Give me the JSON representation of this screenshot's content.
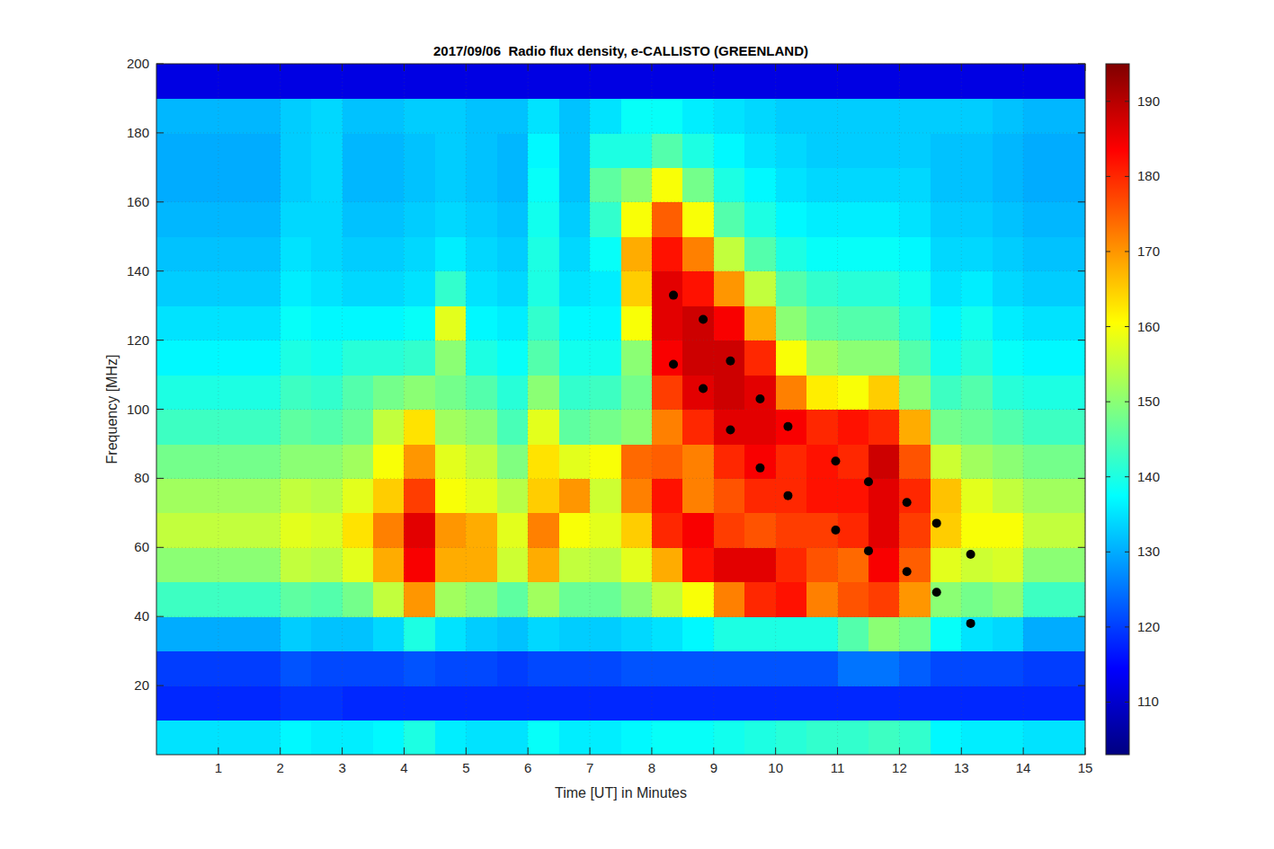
{
  "chart_data": {
    "type": "heatmap",
    "title": "2017/09/06  Radio flux density, e-CALLISTO (GREENLAND)",
    "x_label": "Time [UT] in Minutes",
    "y_label": "Frequency [MHz]",
    "xlim": [
      0,
      15
    ],
    "ylim": [
      0,
      200
    ],
    "xticks": [
      1,
      2,
      3,
      4,
      5,
      6,
      7,
      8,
      9,
      10,
      11,
      12,
      13,
      14,
      15
    ],
    "yticks": [
      20,
      40,
      60,
      80,
      100,
      120,
      140,
      160,
      180,
      200
    ],
    "grid": true,
    "cells": {
      "x": [
        0,
        0.5,
        1,
        1.5,
        2,
        2.5,
        3,
        3.5,
        4,
        4.5,
        5,
        5.5,
        6,
        6.5,
        7,
        7.5,
        8,
        8.5,
        9,
        9.5,
        10,
        10.5,
        11,
        11.5,
        12,
        12.5,
        13,
        13.5,
        14,
        14.5,
        15
      ],
      "y": [
        0,
        10,
        20,
        30,
        40,
        50,
        60,
        70,
        80,
        90,
        100,
        110,
        120,
        130,
        140,
        150,
        160,
        170,
        180,
        190,
        200
      ],
      "values": [
        [
          135,
          118,
          120,
          130,
          143,
          150,
          155,
          152,
          148,
          143,
          140,
          137,
          135,
          133,
          132,
          131,
          130,
          130,
          131,
          112
        ],
        [
          135,
          118,
          120,
          130,
          143,
          150,
          155,
          152,
          148,
          143,
          140,
          137,
          135,
          133,
          132,
          131,
          130,
          130,
          131,
          112
        ],
        [
          135,
          118,
          120,
          130,
          143,
          150,
          155,
          152,
          148,
          143,
          140,
          137,
          135,
          133,
          132,
          131,
          130,
          130,
          131,
          112
        ],
        [
          135,
          118,
          120,
          130,
          143,
          150,
          155,
          152,
          148,
          143,
          140,
          137,
          135,
          133,
          132,
          131,
          130,
          130,
          131,
          112
        ],
        [
          137,
          119,
          122,
          133,
          146,
          155,
          158,
          155,
          150,
          146,
          143,
          140,
          138,
          136,
          135,
          134,
          133,
          133,
          133,
          112
        ],
        [
          136,
          119,
          121,
          132,
          145,
          154,
          157,
          154,
          150,
          145,
          142,
          139,
          137,
          135,
          134,
          134,
          134,
          134,
          134,
          112
        ],
        [
          136,
          118,
          121,
          132,
          148,
          158,
          163,
          158,
          152,
          147,
          145,
          141,
          137,
          134,
          133,
          132,
          131,
          131,
          132,
          112
        ],
        [
          137,
          118,
          121,
          134,
          155,
          168,
          172,
          165,
          160,
          155,
          148,
          141,
          137,
          134,
          133,
          132,
          131,
          131,
          132,
          112
        ],
        [
          140,
          118,
          122,
          140,
          170,
          184,
          186,
          178,
          170,
          163,
          150,
          142,
          138,
          135,
          134,
          133,
          132,
          132,
          133,
          112
        ],
        [
          136,
          118,
          121,
          135,
          152,
          168,
          170,
          160,
          158,
          152,
          148,
          150,
          158,
          142,
          136,
          134,
          133,
          133,
          133,
          112
        ],
        [
          135,
          118,
          121,
          133,
          150,
          168,
          168,
          158,
          155,
          150,
          145,
          140,
          137,
          135,
          134,
          133,
          132,
          132,
          132,
          112
        ],
        [
          135,
          118,
          120,
          132,
          146,
          156,
          158,
          154,
          149,
          144,
          141,
          138,
          136,
          134,
          133,
          132,
          131,
          131,
          132,
          112
        ],
        [
          138,
          118,
          121,
          134,
          152,
          168,
          172,
          165,
          163,
          158,
          150,
          145,
          142,
          140,
          140,
          139,
          138,
          137,
          135,
          112
        ],
        [
          136,
          118,
          121,
          133,
          147,
          155,
          160,
          170,
          158,
          146,
          142,
          139,
          137,
          135,
          134,
          133,
          132,
          132,
          132,
          112
        ],
        [
          136,
          118,
          121,
          133,
          147,
          154,
          158,
          156,
          160,
          148,
          143,
          139,
          137,
          136,
          138,
          142,
          146,
          140,
          135,
          112
        ],
        [
          137,
          118,
          122,
          134,
          150,
          158,
          165,
          172,
          174,
          150,
          148,
          150,
          160,
          165,
          168,
          160,
          150,
          140,
          138,
          112
        ],
        [
          138,
          118,
          122,
          135,
          155,
          168,
          180,
          182,
          175,
          172,
          178,
          184,
          186,
          186,
          182,
          175,
          160,
          145,
          138,
          112
        ],
        [
          138,
          118,
          122,
          137,
          160,
          182,
          184,
          172,
          172,
          180,
          186,
          188,
          188,
          182,
          172,
          160,
          148,
          140,
          136,
          112
        ],
        [
          139,
          118,
          122,
          140,
          172,
          186,
          178,
          176,
          180,
          186,
          188,
          188,
          184,
          170,
          155,
          145,
          140,
          137,
          135,
          112
        ],
        [
          140,
          118,
          122,
          140,
          180,
          186,
          176,
          180,
          184,
          186,
          186,
          180,
          168,
          155,
          145,
          140,
          137,
          135,
          134,
          112
        ],
        [
          141,
          118,
          122,
          140,
          182,
          180,
          178,
          180,
          180,
          184,
          172,
          160,
          150,
          145,
          140,
          137,
          135,
          134,
          133,
          112
        ],
        [
          142,
          118,
          122,
          140,
          172,
          176,
          178,
          182,
          182,
          180,
          162,
          152,
          146,
          142,
          138,
          136,
          134,
          133,
          133,
          112
        ],
        [
          142,
          118,
          125,
          145,
          176,
          174,
          180,
          182,
          180,
          182,
          160,
          150,
          145,
          141,
          138,
          136,
          134,
          133,
          133,
          112
        ],
        [
          143,
          118,
          125,
          150,
          178,
          184,
          186,
          186,
          188,
          180,
          165,
          150,
          145,
          141,
          138,
          136,
          134,
          133,
          133,
          112
        ],
        [
          142,
          118,
          123,
          148,
          170,
          175,
          178,
          180,
          176,
          168,
          150,
          145,
          141,
          139,
          137,
          135,
          134,
          133,
          133,
          112
        ],
        [
          137,
          118,
          121,
          138,
          150,
          158,
          165,
          166,
          156,
          148,
          143,
          139,
          137,
          135,
          134,
          133,
          132,
          132,
          133,
          112
        ],
        [
          136,
          118,
          121,
          135,
          148,
          156,
          160,
          158,
          152,
          147,
          145,
          141,
          139,
          136,
          134,
          133,
          132,
          132,
          133,
          112
        ],
        [
          136,
          118,
          121,
          134,
          150,
          157,
          160,
          155,
          150,
          145,
          141,
          138,
          136,
          134,
          133,
          132,
          131,
          131,
          132,
          112
        ],
        [
          135,
          118,
          120,
          130,
          143,
          150,
          155,
          152,
          148,
          143,
          140,
          137,
          135,
          133,
          132,
          131,
          130,
          130,
          131,
          112
        ],
        [
          135,
          118,
          120,
          130,
          143,
          150,
          155,
          152,
          148,
          143,
          140,
          137,
          135,
          133,
          132,
          131,
          130,
          130,
          131,
          112
        ]
      ]
    },
    "colorbar": {
      "lim": [
        103,
        195
      ],
      "ticks": [
        110,
        120,
        130,
        140,
        150,
        160,
        170,
        180,
        190
      ]
    },
    "series": [
      {
        "type": "scatter",
        "color": "#000000",
        "marker": "circle",
        "x": [
          8.35,
          8.35,
          8.83,
          8.83,
          9.27,
          9.27,
          9.75,
          9.75,
          10.2,
          10.2,
          10.97,
          10.97,
          11.5,
          11.5,
          12.12,
          12.12,
          12.6,
          12.6,
          13.15,
          13.15
        ],
        "values": [
          133,
          113,
          126,
          106,
          114,
          94,
          103,
          83,
          95,
          75,
          85,
          65,
          79,
          59,
          73,
          53,
          67,
          47,
          58,
          38
        ]
      }
    ]
  }
}
